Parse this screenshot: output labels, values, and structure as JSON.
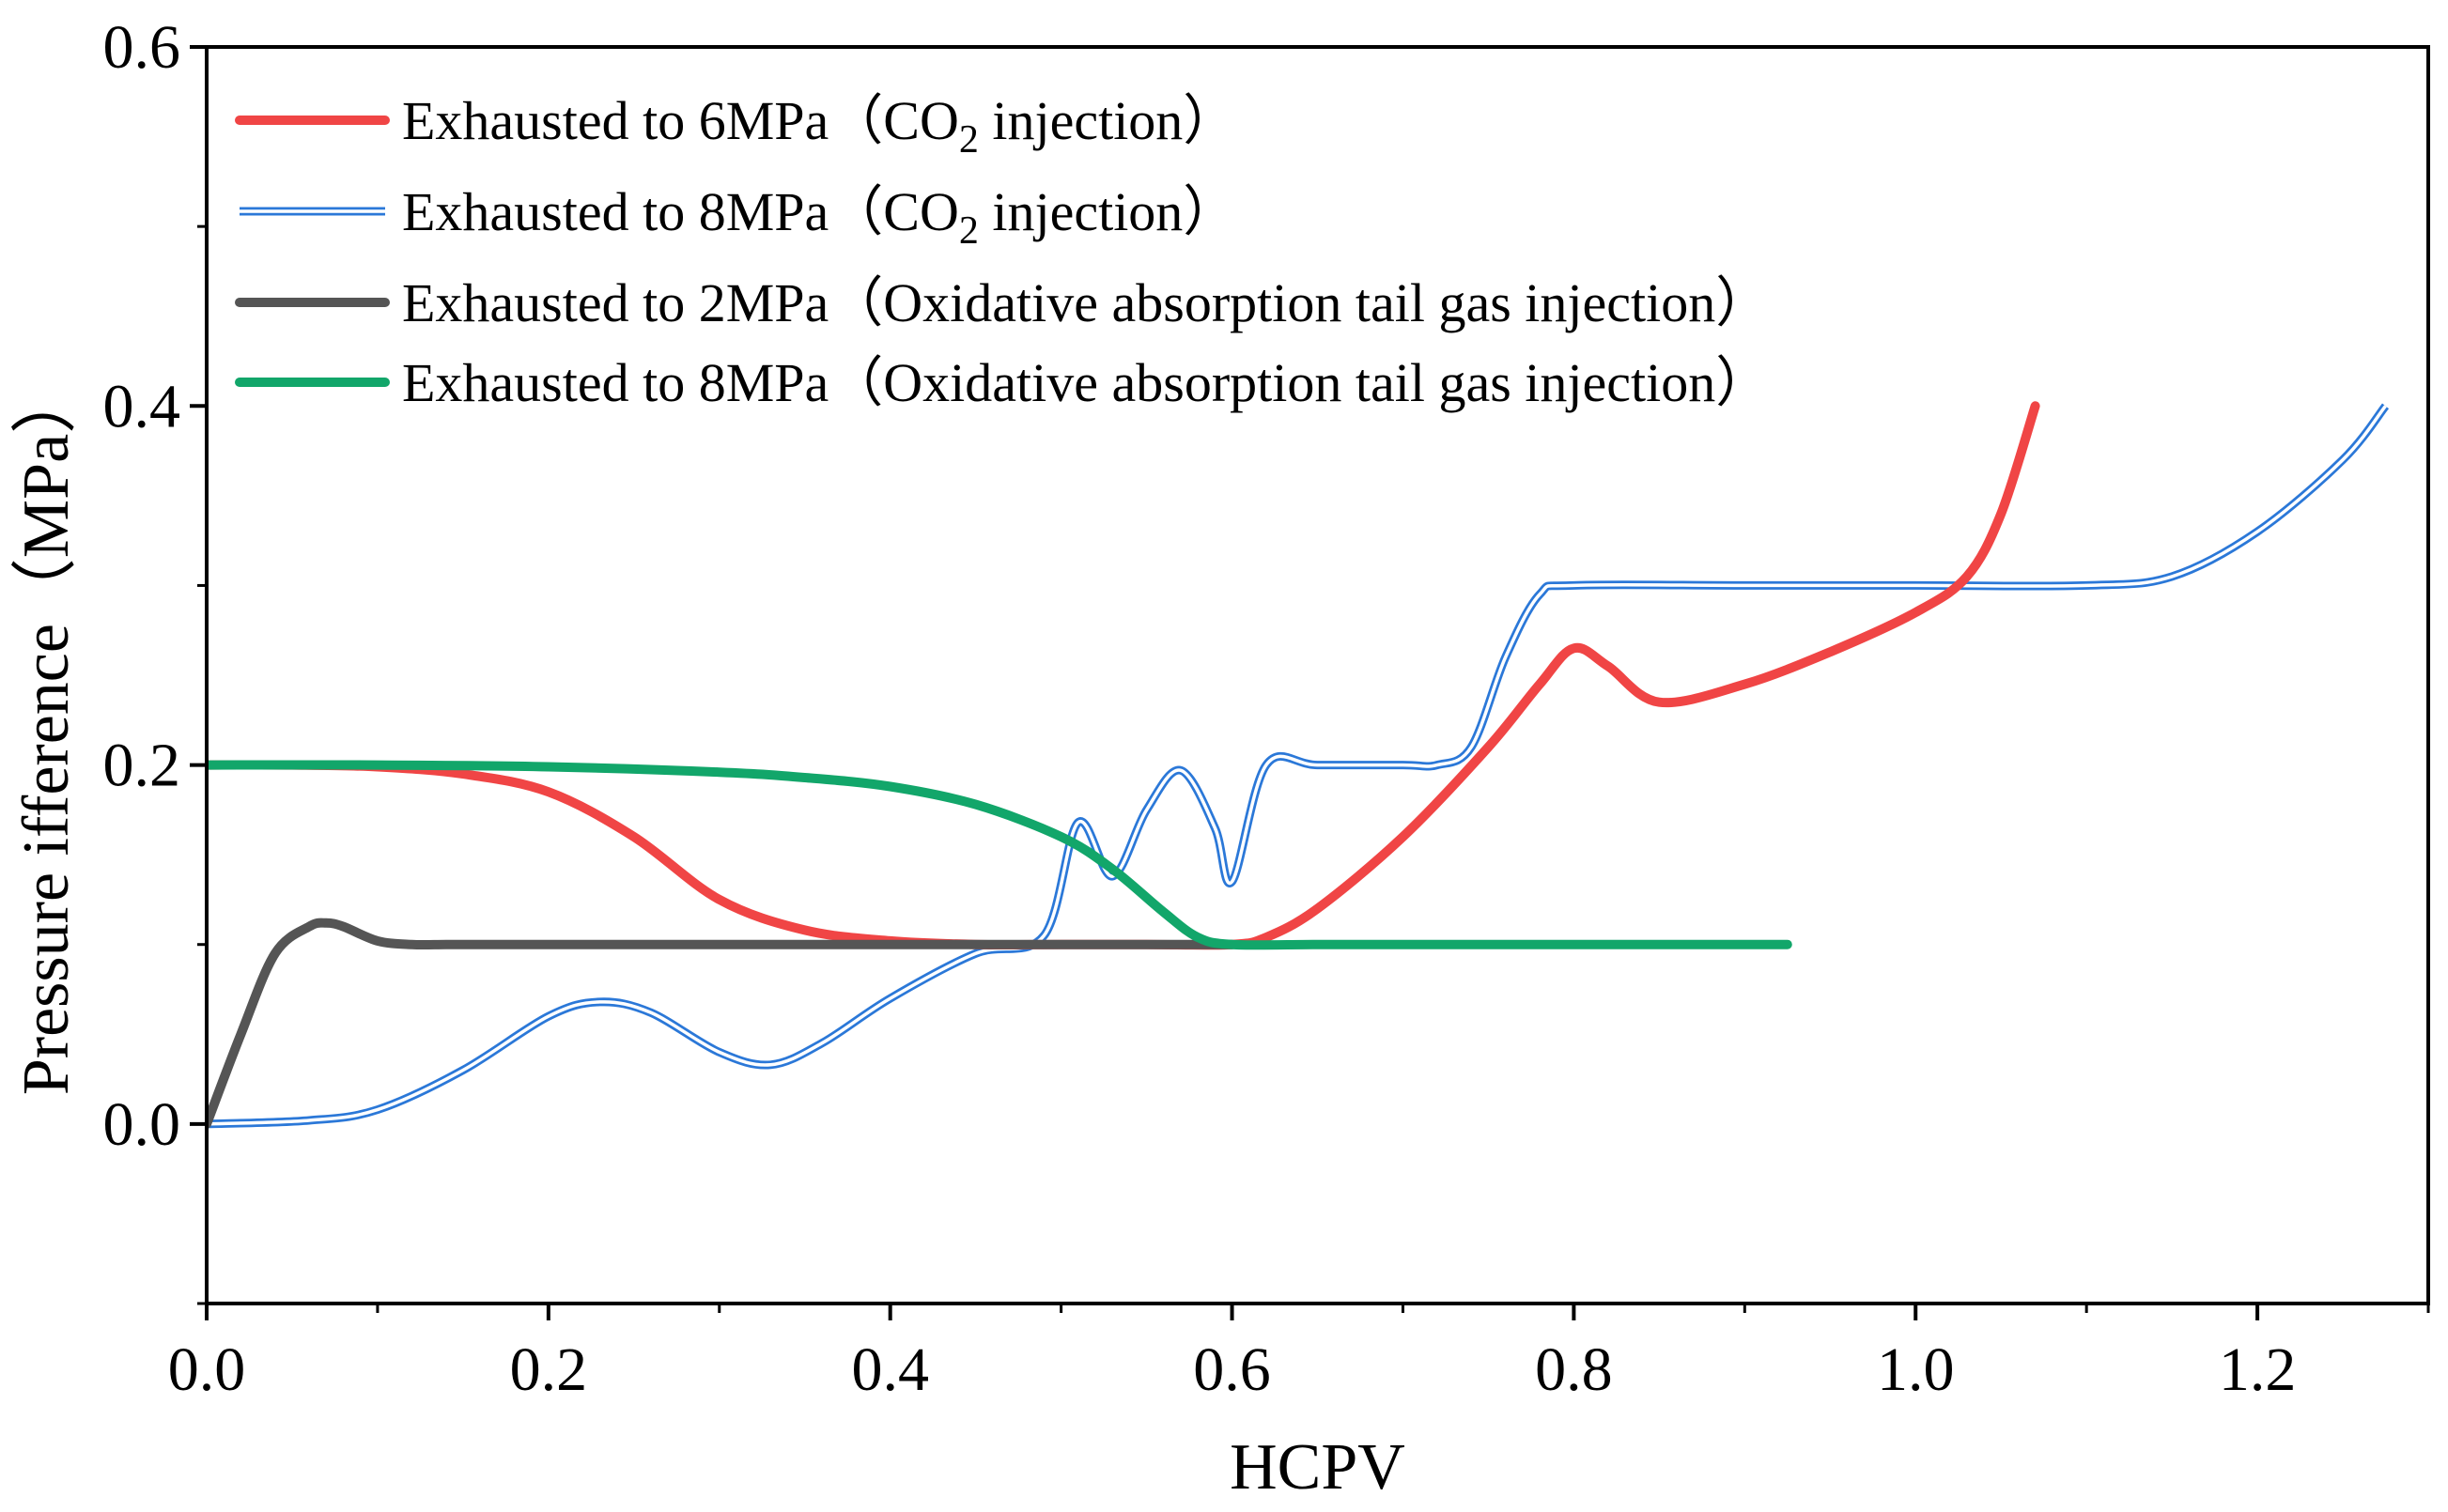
{
  "chart_data": {
    "type": "line",
    "title": "",
    "xlabel": "HCPV",
    "ylabel": "Pressure ifference（MPa）",
    "xlim": [
      0.0,
      1.3
    ],
    "ylim": [
      -0.1,
      0.6
    ],
    "xticks": [
      "0.0",
      "0.2",
      "0.4",
      "0.6",
      "0.8",
      "1.0",
      "1.2"
    ],
    "yticks": [
      "0.0",
      "0.2",
      "0.4",
      "0.6"
    ],
    "grid": false,
    "legend_position": "top-left",
    "series": [
      {
        "name": "Exhausted to 6MPa（CO2 injection）",
        "legend_parts": [
          "Exhausted to 6MPa（CO",
          "2",
          " injection）"
        ],
        "color": "#f04545",
        "style": "solid",
        "x": [
          0.0,
          0.05,
          0.1,
          0.15,
          0.2,
          0.25,
          0.3,
          0.35,
          0.4,
          0.45,
          0.5,
          0.55,
          0.6,
          0.62,
          0.65,
          0.7,
          0.75,
          0.78,
          0.8,
          0.82,
          0.85,
          0.9,
          0.95,
          1.0,
          1.03,
          1.05,
          1.07
        ],
        "y": [
          0.2,
          0.2,
          0.199,
          0.195,
          0.185,
          0.16,
          0.125,
          0.108,
          0.102,
          0.1,
          0.1,
          0.1,
          0.1,
          0.104,
          0.12,
          0.16,
          0.21,
          0.245,
          0.265,
          0.255,
          0.235,
          0.245,
          0.263,
          0.285,
          0.305,
          0.34,
          0.4
        ]
      },
      {
        "name": "Exhausted to 8MPa（CO2 injection）",
        "legend_parts": [
          "Exhausted to 8MPa（CO",
          "2",
          " injection）"
        ],
        "color": "#2b78d8",
        "style": "double",
        "x": [
          0.0,
          0.06,
          0.1,
          0.15,
          0.2,
          0.23,
          0.26,
          0.3,
          0.33,
          0.36,
          0.4,
          0.45,
          0.49,
          0.51,
          0.53,
          0.55,
          0.57,
          0.59,
          0.6,
          0.62,
          0.65,
          0.7,
          0.72,
          0.74,
          0.76,
          0.78,
          0.8,
          0.9,
          1.0,
          1.1,
          1.15,
          1.2,
          1.25,
          1.275
        ],
        "y": [
          0.0,
          0.002,
          0.008,
          0.03,
          0.06,
          0.068,
          0.062,
          0.04,
          0.033,
          0.045,
          0.07,
          0.095,
          0.105,
          0.168,
          0.138,
          0.175,
          0.197,
          0.165,
          0.135,
          0.2,
          0.2,
          0.2,
          0.2,
          0.21,
          0.26,
          0.295,
          0.3,
          0.3,
          0.3,
          0.3,
          0.305,
          0.33,
          0.37,
          0.4
        ]
      },
      {
        "name": "Exhausted to 2MPa（Oxidative absorption tail gas injection）",
        "legend_parts": [
          "Exhausted to 2MPa（Oxidative absorption tail gas injection）",
          "",
          ""
        ],
        "color": "#555555",
        "style": "solid",
        "x": [
          0.0,
          0.02,
          0.04,
          0.06,
          0.07,
          0.08,
          0.1,
          0.12,
          0.14,
          0.16,
          0.2,
          0.3,
          0.4,
          0.5,
          0.6
        ],
        "y": [
          0.0,
          0.05,
          0.095,
          0.11,
          0.112,
          0.11,
          0.102,
          0.1,
          0.1,
          0.1,
          0.1,
          0.1,
          0.1,
          0.1,
          0.1
        ]
      },
      {
        "name": "Exhausted to 8MPa（Oxidative absorption tail gas injection）",
        "legend_parts": [
          "Exhausted to 8MPa（Oxidative absorption tail gas injection）",
          "",
          ""
        ],
        "color": "#12a66a",
        "style": "solid",
        "x": [
          0.0,
          0.1,
          0.2,
          0.3,
          0.35,
          0.4,
          0.45,
          0.5,
          0.53,
          0.56,
          0.58,
          0.6,
          0.65,
          0.7,
          0.8,
          0.9,
          0.925
        ],
        "y": [
          0.2,
          0.2,
          0.199,
          0.196,
          0.193,
          0.188,
          0.178,
          0.16,
          0.142,
          0.118,
          0.104,
          0.1,
          0.1,
          0.1,
          0.1,
          0.1,
          0.1
        ]
      }
    ]
  }
}
